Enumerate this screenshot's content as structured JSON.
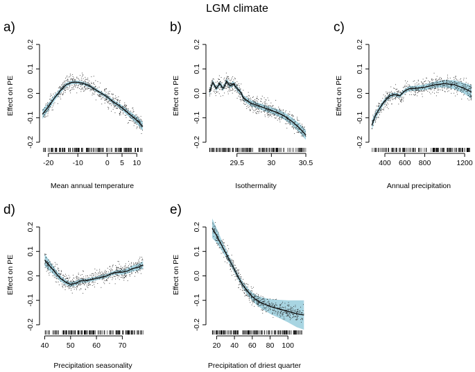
{
  "figure_title": "LGM climate",
  "chart_data": [
    {
      "type": "line",
      "panel_label": "a)",
      "title": "",
      "xlabel": "Mean annual temperature",
      "ylabel": "Effect on PE",
      "xlim": [
        -23,
        13
      ],
      "ylim": [
        -0.22,
        0.22
      ],
      "xticks": [
        -20,
        -10,
        0,
        5,
        10
      ],
      "yticks": [
        -0.2,
        -0.1,
        0.0,
        0.1,
        0.2
      ],
      "series": [
        {
          "name": "smooth",
          "x": [
            -22,
            -20,
            -18,
            -16,
            -14,
            -12,
            -10,
            -8,
            -6,
            -4,
            -2,
            0,
            2,
            4,
            6,
            8,
            10,
            12
          ],
          "values": [
            -0.085,
            -0.055,
            -0.02,
            0.01,
            0.035,
            0.045,
            0.045,
            0.04,
            0.03,
            0.015,
            0.0,
            -0.015,
            -0.035,
            -0.05,
            -0.07,
            -0.09,
            -0.11,
            -0.135
          ],
          "ci_halfwidth": [
            0.02,
            0.015,
            0.012,
            0.01,
            0.008,
            0.007,
            0.007,
            0.007,
            0.007,
            0.007,
            0.007,
            0.008,
            0.009,
            0.01,
            0.011,
            0.013,
            0.015,
            0.018
          ]
        }
      ]
    },
    {
      "type": "line",
      "panel_label": "b)",
      "title": "",
      "xlabel": "Isothermality",
      "ylabel": "Effect on PE",
      "xlim": [
        29.05,
        30.55
      ],
      "ylim": [
        -0.22,
        0.22
      ],
      "xticks": [
        29.5,
        30.0,
        30.5
      ],
      "yticks": [
        -0.2,
        -0.1,
        0.0,
        0.1,
        0.2
      ],
      "series": [
        {
          "name": "smooth",
          "x": [
            29.1,
            29.15,
            29.2,
            29.25,
            29.3,
            29.35,
            29.4,
            29.45,
            29.5,
            29.55,
            29.6,
            29.7,
            29.8,
            29.9,
            30.0,
            30.1,
            30.2,
            30.3,
            30.4,
            30.5
          ],
          "values": [
            0.005,
            0.045,
            0.02,
            0.04,
            0.02,
            0.05,
            0.03,
            0.04,
            0.02,
            0.005,
            -0.02,
            -0.04,
            -0.05,
            -0.06,
            -0.07,
            -0.08,
            -0.095,
            -0.115,
            -0.14,
            -0.17
          ],
          "ci_halfwidth": [
            0.012,
            0.01,
            0.01,
            0.01,
            0.01,
            0.01,
            0.01,
            0.01,
            0.01,
            0.01,
            0.011,
            0.012,
            0.012,
            0.013,
            0.013,
            0.014,
            0.015,
            0.016,
            0.018,
            0.02
          ]
        }
      ]
    },
    {
      "type": "line",
      "panel_label": "c)",
      "title": "",
      "xlabel": "Annual precipitation",
      "ylabel": "Effect on PE",
      "xlim": [
        240,
        1290
      ],
      "ylim": [
        -0.22,
        0.22
      ],
      "xticks": [
        400,
        600,
        800,
        1200
      ],
      "yticks": [
        -0.2,
        -0.1,
        0.0,
        0.1,
        0.2
      ],
      "series": [
        {
          "name": "smooth",
          "x": [
            270,
            300,
            350,
            400,
            450,
            500,
            550,
            600,
            650,
            700,
            800,
            900,
            1000,
            1100,
            1200,
            1270
          ],
          "values": [
            -0.13,
            -0.095,
            -0.06,
            -0.03,
            -0.01,
            -0.005,
            -0.01,
            0.01,
            0.02,
            0.02,
            0.025,
            0.035,
            0.04,
            0.035,
            0.02,
            0.005
          ],
          "ci_halfwidth": [
            0.02,
            0.015,
            0.012,
            0.01,
            0.009,
            0.008,
            0.008,
            0.009,
            0.01,
            0.01,
            0.011,
            0.013,
            0.015,
            0.018,
            0.022,
            0.028
          ]
        }
      ]
    },
    {
      "type": "line",
      "panel_label": "d)",
      "title": "",
      "xlabel": "Precipitation seasonality",
      "ylabel": "Effect on PE",
      "xlim": [
        38,
        79
      ],
      "ylim": [
        -0.22,
        0.22
      ],
      "xticks": [
        40,
        50,
        60,
        70
      ],
      "yticks": [
        -0.2,
        -0.1,
        0.0,
        0.1,
        0.2
      ],
      "series": [
        {
          "name": "smooth",
          "x": [
            40,
            42,
            44,
            46,
            48,
            50,
            52,
            54,
            56,
            58,
            60,
            62,
            64,
            66,
            68,
            70,
            72,
            74,
            76,
            78
          ],
          "values": [
            0.065,
            0.04,
            0.015,
            -0.01,
            -0.025,
            -0.035,
            -0.03,
            -0.02,
            -0.02,
            -0.015,
            -0.01,
            -0.005,
            0.0,
            0.01,
            0.015,
            0.015,
            0.02,
            0.03,
            0.035,
            0.045
          ],
          "ci_halfwidth": [
            0.025,
            0.02,
            0.015,
            0.012,
            0.01,
            0.01,
            0.009,
            0.008,
            0.008,
            0.008,
            0.008,
            0.008,
            0.008,
            0.008,
            0.009,
            0.01,
            0.011,
            0.012,
            0.013,
            0.015
          ]
        }
      ]
    },
    {
      "type": "line",
      "panel_label": "e)",
      "title": "",
      "xlabel": "Precipitation of driest quarter",
      "ylabel": "Effect on PE",
      "xlim": [
        8,
        124
      ],
      "ylim": [
        -0.22,
        0.22
      ],
      "xticks": [
        20,
        40,
        60,
        80,
        100
      ],
      "yticks": [
        -0.2,
        -0.1,
        0.0,
        0.1,
        0.2
      ],
      "series": [
        {
          "name": "smooth",
          "x": [
            15,
            20,
            25,
            30,
            35,
            40,
            45,
            50,
            55,
            60,
            65,
            70,
            80,
            90,
            100,
            110,
            118
          ],
          "values": [
            0.195,
            0.165,
            0.13,
            0.095,
            0.06,
            0.025,
            -0.01,
            -0.04,
            -0.065,
            -0.085,
            -0.1,
            -0.11,
            -0.125,
            -0.135,
            -0.145,
            -0.155,
            -0.16
          ],
          "ci_halfwidth": [
            0.04,
            0.03,
            0.022,
            0.017,
            0.014,
            0.012,
            0.012,
            0.013,
            0.015,
            0.017,
            0.02,
            0.023,
            0.03,
            0.037,
            0.045,
            0.055,
            0.06
          ]
        }
      ]
    }
  ]
}
